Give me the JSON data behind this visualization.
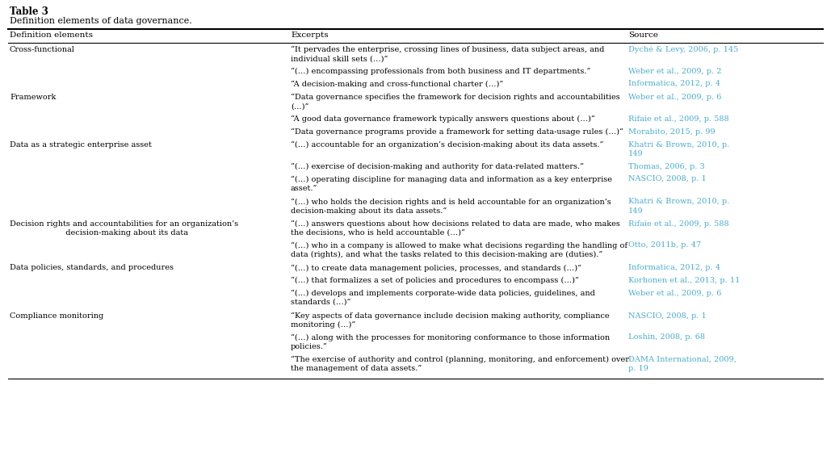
{
  "title": "Table 3",
  "subtitle": "Definition elements of data governance.",
  "col_headers": [
    "Definition elements",
    "Excerpts",
    "Source"
  ],
  "bg_color": "#ffffff",
  "source_color": "#4AACCF",
  "text_color": "#000000",
  "rows": [
    {
      "element": "Cross-functional",
      "sub_rows": [
        {
          "excerpt": "“It pervades the enterprise, crossing lines of business, data subject areas, and\nindividual skill sets (…)”",
          "source": "Dyché & Levy, 2006, p. 145",
          "exc_lines": 2,
          "src_lines": 1
        },
        {
          "excerpt": "“(…) encompassing professionals from both business and IT departments.”",
          "source": "Weber et al., 2009, p. 2",
          "exc_lines": 1,
          "src_lines": 1
        },
        {
          "excerpt": "“A decision-making and cross-functional charter (…)”",
          "source": "Informatica, 2012, p. 4",
          "exc_lines": 1,
          "src_lines": 1
        }
      ]
    },
    {
      "element": "Framework",
      "sub_rows": [
        {
          "excerpt": "“Data governance specifies the framework for decision rights and accountabilities\n(…)”",
          "source": "Weber et al., 2009, p. 6",
          "exc_lines": 2,
          "src_lines": 1
        },
        {
          "excerpt": "“A good data governance framework typically answers questions about (…)”",
          "source": "Rifaie et al., 2009, p. 588",
          "exc_lines": 1,
          "src_lines": 1
        },
        {
          "excerpt": "“Data governance programs provide a framework for setting data-usage rules (…)”",
          "source": "Morabito, 2015, p. 99",
          "exc_lines": 1,
          "src_lines": 1
        }
      ]
    },
    {
      "element": "Data as a strategic enterprise asset",
      "sub_rows": [
        {
          "excerpt": "“(…) accountable for an organization’s decision-making about its data assets.”",
          "source": "Khatri & Brown, 2010, p.\n149",
          "exc_lines": 1,
          "src_lines": 2
        },
        {
          "excerpt": "“(…) exercise of decision-making and authority for data-related matters.”",
          "source": "Thomas, 2006, p. 3",
          "exc_lines": 1,
          "src_lines": 1
        },
        {
          "excerpt": "“(…) operating discipline for managing data and information as a key enterprise\nasset.”",
          "source": "NASCIO, 2008, p. 1",
          "exc_lines": 2,
          "src_lines": 1
        }
      ]
    },
    {
      "element": "Decision rights and accountabilities for an organization’s\n  decision-making about its data",
      "sub_rows": [
        {
          "excerpt": "“(…) who holds the decision rights and is held accountable for an organization’s\ndecision-making about its data assets.”",
          "source": "Khatri & Brown, 2010, p.\n149",
          "exc_lines": 2,
          "src_lines": 2
        },
        {
          "excerpt": "“(…) answers questions about how decisions related to data are made, who makes\nthe decisions, who is held accountable (…)”",
          "source": "Rifaie et al., 2009, p. 588",
          "exc_lines": 2,
          "src_lines": 1
        },
        {
          "excerpt": "“(…) who in a company is allowed to make what decisions regarding the handling of\ndata (rights), and what the tasks related to this decision-making are (duties).”",
          "source": "Otto, 2011b, p. 47",
          "exc_lines": 2,
          "src_lines": 1
        }
      ]
    },
    {
      "element": "Data policies, standards, and procedures",
      "sub_rows": [
        {
          "excerpt": "“(…) to create data management policies, processes, and standards (…)”",
          "source": "Informatica, 2012, p. 4",
          "exc_lines": 1,
          "src_lines": 1
        },
        {
          "excerpt": "“(…) that formalizes a set of policies and procedures to encompass (…)”",
          "source": "Korhonen et al., 2013, p. 11",
          "exc_lines": 1,
          "src_lines": 1
        },
        {
          "excerpt": "“(…) develops and implements corporate-wide data policies, guidelines, and\nstandards (…)”",
          "source": "Weber et al., 2009, p. 6",
          "exc_lines": 2,
          "src_lines": 1
        }
      ]
    },
    {
      "element": "Compliance monitoring",
      "sub_rows": [
        {
          "excerpt": "“Key aspects of data governance include decision making authority, compliance\nmonitoring (…)”",
          "source": "NASCIO, 2008, p. 1",
          "exc_lines": 2,
          "src_lines": 1
        },
        {
          "excerpt": "“(…) along with the processes for monitoring conformance to those information\npolicies.”",
          "source": "Loshin, 2008, p. 68",
          "exc_lines": 2,
          "src_lines": 1
        },
        {
          "excerpt": "“The exercise of authority and control (planning, monitoring, and enforcement) over\nthe management of data assets.”",
          "source": "DAMA International, 2009,\np. 19",
          "exc_lines": 2,
          "src_lines": 2
        }
      ]
    }
  ]
}
